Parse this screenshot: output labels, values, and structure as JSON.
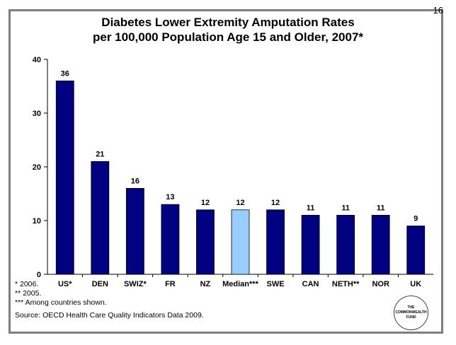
{
  "page_number": "16",
  "chart_data": {
    "type": "bar",
    "title": [
      "Diabetes Lower Extremity Amputation Rates",
      "per 100,000 Population Age 15 and Older, 2007*"
    ],
    "categories": [
      "US*",
      "DEN",
      "SWIZ*",
      "FR",
      "NZ",
      "Median***",
      "SWE",
      "CAN",
      "NETH**",
      "NOR",
      "UK"
    ],
    "values": [
      36,
      21,
      16,
      13,
      12,
      12,
      12,
      11,
      11,
      11,
      9
    ],
    "data_labels": [
      "36",
      "21",
      "16",
      "13",
      "12",
      "12",
      "12",
      "11",
      "11",
      "11",
      "9"
    ],
    "highlight_category": "Median***",
    "colors": {
      "bar": "#000080",
      "highlight": "#99ccff",
      "border": "#000000"
    },
    "ylim": [
      0,
      40
    ],
    "yticks": [
      0,
      10,
      20,
      30,
      40
    ],
    "ytick_labels": [
      "0",
      "10",
      "20",
      "30",
      "40"
    ],
    "grid": false
  },
  "footnotes": [
    "* 2006.",
    "** 2005.",
    "*** Among countries shown."
  ],
  "source": "Source: OECD Health Care Quality Indicators Data 2009.",
  "logo": {
    "line1": "THE",
    "line2": "COMMONWEALTH",
    "line3": "FUND"
  }
}
